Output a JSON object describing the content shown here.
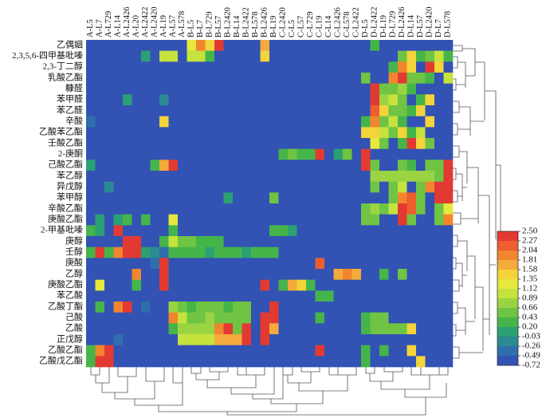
{
  "chart_data": {
    "type": "heatmap",
    "columns": [
      "A-L5",
      "A-L7",
      "A-L729",
      "A-L14",
      "A-L2426",
      "A-L20",
      "A-L2422",
      "A-L2420",
      "A-L19",
      "A-L57",
      "A-L578",
      "B-L5",
      "B-L7",
      "B-L729",
      "B-L57",
      "B-L2420",
      "B-L14",
      "B-L2422",
      "B-L578",
      "B-L2426",
      "B-L19",
      "C-L2420",
      "C-L5",
      "C-L57",
      "C-L729",
      "C-L19",
      "C-L14",
      "C-L2426",
      "C-L578",
      "C-L2422",
      "D-L5",
      "D-L2422",
      "D-L19",
      "D-L729",
      "D-L2426",
      "D-L14",
      "D-L57",
      "D-L2420",
      "D-L7",
      "D-L578"
    ],
    "rows": [
      "乙偶姻",
      "2,3,5,6-四甲基吡嗪",
      "2,3-丁二醇",
      "乳酸乙酯",
      "糠醛",
      "苯甲醛",
      "苯乙醛",
      "辛酸",
      "乙酸苯乙酯",
      "壬酸乙酯",
      "2-庚酮",
      "己酸乙酯",
      "苯乙醇",
      "异戊醇",
      "苯甲醇",
      "辛酸乙酯",
      "庚酸乙酯",
      "2-甲基吡嗪",
      "庚醇",
      "壬醇",
      "庚酸",
      "乙醇",
      "庚酸乙酯",
      "苯乙酸",
      "乙酸丁酯",
      "己酸",
      "乙酸",
      "正戊醇",
      "乙酸乙酯",
      "乙酸戊乙酯"
    ],
    "values": [
      [
        -0.72,
        -0.72,
        -0.72,
        -0.72,
        -0.72,
        -0.72,
        -0.72,
        -0.72,
        -0.72,
        -0.72,
        -0.72,
        1.2,
        1.9,
        1.5,
        2.4,
        -0.72,
        -0.72,
        -0.72,
        -0.72,
        1.8,
        -0.72,
        -0.72,
        -0.72,
        -0.72,
        -0.72,
        -0.72,
        -0.72,
        -0.72,
        -0.72,
        -0.72,
        -0.72,
        0.3,
        -0.72,
        -0.72,
        -0.72,
        -0.72,
        -0.72,
        -0.72,
        -0.72,
        -0.72
      ],
      [
        -0.72,
        -0.72,
        -0.72,
        -0.72,
        -0.72,
        -0.72,
        0.2,
        -0.72,
        0.9,
        0.9,
        -0.72,
        0.9,
        0.9,
        0.4,
        -0.72,
        -0.72,
        -0.72,
        -0.72,
        -0.72,
        1.4,
        -0.72,
        -0.72,
        -0.72,
        -0.72,
        -0.72,
        -0.72,
        -0.72,
        -0.72,
        -0.72,
        -0.72,
        -0.72,
        -0.72,
        -0.72,
        -0.72,
        0.5,
        1.5,
        0.4,
        0.6,
        1.0,
        0.4
      ],
      [
        -0.72,
        -0.72,
        -0.72,
        -0.72,
        -0.72,
        -0.72,
        -0.72,
        -0.72,
        -0.72,
        -0.72,
        -0.72,
        -0.72,
        -0.72,
        -0.72,
        -0.72,
        -0.72,
        -0.72,
        -0.72,
        -0.72,
        -0.72,
        -0.72,
        -0.72,
        -0.72,
        -0.72,
        -0.72,
        -0.72,
        -0.72,
        -0.72,
        -0.72,
        -0.72,
        -0.72,
        -0.72,
        -0.72,
        0.4,
        1.9,
        1.4,
        -0.72,
        2.4,
        1.5,
        -0.72
      ],
      [
        -0.72,
        -0.72,
        -0.72,
        -0.72,
        -0.72,
        -0.72,
        -0.72,
        -0.72,
        -0.72,
        -0.72,
        -0.72,
        -0.72,
        -0.72,
        -0.72,
        -0.72,
        -0.72,
        -0.72,
        -0.72,
        -0.72,
        -0.72,
        -0.72,
        -0.72,
        -0.72,
        -0.72,
        -0.72,
        -0.72,
        -0.72,
        -0.72,
        -0.72,
        -0.72,
        0.5,
        -0.72,
        -0.72,
        2.0,
        2.3,
        0.6,
        0.5,
        0.3,
        -0.72,
        0.9
      ],
      [
        -0.72,
        -0.72,
        -0.72,
        -0.72,
        -0.72,
        -0.72,
        -0.72,
        -0.72,
        -0.72,
        -0.72,
        -0.72,
        -0.72,
        -0.72,
        -0.72,
        -0.72,
        -0.72,
        -0.72,
        -0.72,
        -0.72,
        -0.72,
        -0.72,
        -0.72,
        -0.72,
        -0.72,
        -0.72,
        -0.72,
        -0.72,
        -0.72,
        -0.72,
        -0.72,
        -0.72,
        2.4,
        0.6,
        0.5,
        0.7,
        0.4,
        -0.72,
        -0.72,
        -0.72,
        -0.72
      ],
      [
        -0.72,
        -0.72,
        -0.72,
        -0.72,
        0.0,
        -0.72,
        -0.72,
        -0.72,
        -0.1,
        -0.72,
        -0.72,
        -0.72,
        -0.72,
        -0.72,
        -0.72,
        -0.72,
        -0.72,
        -0.72,
        -0.72,
        -0.72,
        -0.72,
        -0.72,
        -0.72,
        -0.72,
        -0.72,
        -0.72,
        -0.72,
        -0.72,
        -0.72,
        -0.72,
        -0.72,
        2.4,
        0.7,
        0.9,
        0.5,
        -0.72,
        0.4,
        1.4,
        -0.72,
        -0.72
      ],
      [
        -0.72,
        -0.72,
        -0.72,
        -0.72,
        -0.72,
        -0.72,
        -0.72,
        -0.72,
        -0.72,
        -0.72,
        -0.72,
        -0.72,
        -0.72,
        -0.72,
        -0.72,
        -0.72,
        -0.72,
        -0.72,
        -0.72,
        -0.72,
        -0.72,
        -0.72,
        -0.72,
        -0.72,
        -0.72,
        -0.72,
        -0.72,
        -0.72,
        -0.72,
        -0.72,
        -0.72,
        2.2,
        1.5,
        0.5,
        0.6,
        0.4,
        1.4,
        -0.72,
        -0.72,
        -0.72
      ],
      [
        -0.3,
        -0.72,
        -0.72,
        -0.72,
        -0.72,
        -0.72,
        -0.72,
        -0.72,
        1.5,
        -0.72,
        -0.72,
        -0.72,
        -0.72,
        -0.72,
        -0.72,
        -0.72,
        -0.72,
        -0.72,
        -0.72,
        -0.72,
        -0.72,
        -0.72,
        -0.72,
        -0.72,
        -0.72,
        -0.72,
        -0.72,
        -0.72,
        -0.72,
        -0.72,
        0.4,
        1.9,
        0.5,
        0.9,
        0.3,
        -0.72,
        -0.72,
        1.4,
        -0.72,
        -0.72
      ],
      [
        -0.72,
        -0.72,
        -0.72,
        -0.72,
        -0.72,
        -0.72,
        -0.72,
        -0.72,
        -0.72,
        -0.72,
        -0.72,
        -0.72,
        -0.72,
        -0.72,
        -0.72,
        -0.72,
        -0.72,
        -0.72,
        -0.72,
        -0.72,
        -0.72,
        -0.72,
        -0.72,
        -0.72,
        -0.72,
        -0.72,
        -0.72,
        -0.72,
        -0.72,
        -0.72,
        1.4,
        1.5,
        0.9,
        0.5,
        1.4,
        0.4,
        0.9,
        -0.72,
        -0.72,
        -0.72
      ],
      [
        -0.72,
        -0.72,
        -0.72,
        -0.72,
        -0.72,
        -0.72,
        -0.72,
        -0.72,
        -0.72,
        -0.72,
        -0.72,
        -0.72,
        -0.72,
        -0.72,
        -0.72,
        -0.72,
        -0.72,
        -0.72,
        -0.72,
        -0.72,
        -0.72,
        -0.72,
        -0.72,
        -0.72,
        -0.72,
        -0.72,
        -0.72,
        -0.72,
        -0.72,
        -0.72,
        -0.72,
        1.3,
        0.5,
        -0.72,
        0.4,
        2.4,
        1.5,
        0.5,
        -0.72,
        -0.72
      ],
      [
        -0.72,
        -0.72,
        -0.72,
        -0.72,
        -0.72,
        -0.72,
        -0.72,
        -0.72,
        -0.72,
        -0.72,
        -0.72,
        -0.72,
        -0.72,
        -0.72,
        -0.72,
        -0.72,
        -0.72,
        -0.72,
        -0.72,
        -0.72,
        -0.72,
        0.3,
        0.5,
        0.4,
        0.3,
        2.4,
        -0.72,
        0.2,
        0.5,
        -0.72,
        2.5,
        -0.72,
        -0.72,
        -0.72,
        -0.72,
        -0.72,
        -0.72,
        -0.72,
        -0.72,
        -0.72
      ],
      [
        0.2,
        -0.72,
        -0.72,
        -0.72,
        -0.72,
        -0.72,
        -0.72,
        0.3,
        1.8,
        2.3,
        -0.72,
        -0.72,
        -0.72,
        -0.72,
        -0.72,
        -0.72,
        -0.72,
        -0.72,
        -0.72,
        -0.72,
        -0.72,
        -0.72,
        -0.72,
        -0.72,
        -0.72,
        -0.72,
        -0.72,
        -0.72,
        -0.72,
        -0.72,
        2.3,
        0.5,
        -0.72,
        -0.72,
        0.5,
        0.4,
        -0.72,
        0.5,
        0.5,
        2.5
      ],
      [
        -0.72,
        -0.72,
        -0.72,
        -0.72,
        -0.72,
        -0.72,
        -0.72,
        -0.72,
        -0.72,
        -0.72,
        -0.72,
        -0.72,
        -0.72,
        -0.72,
        -0.72,
        -0.72,
        -0.72,
        -0.72,
        -0.72,
        -0.72,
        -0.72,
        -0.72,
        -0.72,
        -0.72,
        -0.72,
        -0.72,
        -0.72,
        -0.72,
        -0.72,
        -0.72,
        -0.72,
        0.8,
        0.7,
        0.8,
        0.8,
        0.7,
        0.8,
        0.7,
        0.6,
        2.5
      ],
      [
        -0.72,
        -0.72,
        -0.1,
        -0.72,
        -0.72,
        -0.72,
        -0.72,
        -0.72,
        -0.72,
        -0.72,
        -0.72,
        -0.72,
        -0.72,
        -0.72,
        -0.72,
        -0.72,
        -0.72,
        -0.72,
        -0.72,
        -0.72,
        -0.72,
        -0.72,
        -0.72,
        -0.72,
        -0.72,
        -0.72,
        -0.72,
        -0.72,
        -0.72,
        -0.72,
        -0.72,
        0.5,
        -0.72,
        0.5,
        0.9,
        -0.72,
        0.5,
        1.9,
        2.5,
        2.4
      ],
      [
        -0.72,
        -0.72,
        -0.72,
        -0.72,
        -0.72,
        -0.72,
        -0.72,
        -0.72,
        -0.72,
        -0.72,
        -0.72,
        -0.72,
        -0.72,
        -0.72,
        -0.72,
        0.0,
        -0.72,
        -0.72,
        -0.72,
        -0.72,
        0.5,
        -0.72,
        -0.72,
        -0.72,
        -0.72,
        -0.72,
        -0.72,
        -0.72,
        -0.72,
        -0.72,
        -0.72,
        -0.72,
        -0.72,
        0.5,
        1.9,
        2.2,
        0.5,
        -0.72,
        2.5,
        2.4
      ],
      [
        -0.72,
        -0.72,
        -0.72,
        -0.72,
        -0.72,
        -0.72,
        -0.72,
        -0.72,
        -0.72,
        -0.72,
        -0.72,
        -0.72,
        -0.72,
        -0.72,
        -0.72,
        -0.72,
        -0.72,
        -0.72,
        -0.72,
        -0.72,
        -0.72,
        -0.72,
        -0.72,
        -0.72,
        -0.72,
        -0.72,
        -0.72,
        -0.72,
        -0.72,
        -0.72,
        0.5,
        0.7,
        0.5,
        0.9,
        2.3,
        2.2,
        0.5,
        -0.72,
        0.5,
        1.3
      ],
      [
        -0.72,
        0.2,
        -0.72,
        0.0,
        0.3,
        -0.72,
        0.3,
        -0.72,
        -0.72,
        1.3,
        -0.72,
        -0.72,
        -0.72,
        -0.72,
        -0.72,
        -0.72,
        -0.72,
        -0.72,
        -0.72,
        -0.72,
        -0.72,
        -0.72,
        -0.72,
        -0.72,
        -0.72,
        -0.72,
        -0.72,
        -0.72,
        -0.72,
        -0.72,
        0.6,
        0.6,
        -0.72,
        -0.72,
        2.3,
        0.5,
        -0.72,
        -0.72,
        0.5,
        2.0
      ],
      [
        0.3,
        0.2,
        -0.72,
        2.3,
        -0.72,
        -0.72,
        -0.72,
        -0.72,
        -0.72,
        0.4,
        -0.72,
        -0.72,
        -0.72,
        -0.72,
        -0.72,
        -0.72,
        -0.72,
        -0.72,
        -0.72,
        -0.72,
        0.3,
        0.3,
        0.2,
        -0.72,
        -0.72,
        -0.72,
        -0.72,
        -0.72,
        -0.72,
        -0.72,
        -0.72,
        -0.72,
        -0.72,
        -0.72,
        -0.72,
        -0.72,
        -0.72,
        -0.72,
        -0.72,
        -0.72
      ],
      [
        -0.72,
        -0.72,
        -0.72,
        -0.72,
        2.4,
        2.3,
        -0.72,
        -0.72,
        0.3,
        0.9,
        0.5,
        0.5,
        0.4,
        0.4,
        0.3,
        -0.72,
        -0.72,
        -0.72,
        -0.72,
        -0.72,
        -0.72,
        -0.72,
        -0.72,
        -0.72,
        -0.72,
        -0.72,
        -0.72,
        -0.72,
        -0.72,
        -0.72,
        -0.72,
        -0.72,
        -0.72,
        -0.72,
        -0.72,
        -0.72,
        -0.72,
        -0.72,
        -0.72,
        -0.72
      ],
      [
        0.3,
        2.4,
        0.3,
        2.0,
        2.4,
        2.3,
        0.2,
        -0.2,
        -0.3,
        0.3,
        0.3,
        0.3,
        0.3,
        0.2,
        0.3,
        0.3,
        0.3,
        0.2,
        0.3,
        0.3,
        0.3,
        -0.72,
        -0.72,
        -0.72,
        -0.72,
        -0.72,
        -0.72,
        -0.72,
        -0.72,
        -0.72,
        -0.72,
        -0.72,
        -0.72,
        -0.72,
        -0.72,
        -0.72,
        -0.72,
        -0.72,
        -0.72,
        -0.72
      ],
      [
        -0.72,
        -0.72,
        -0.72,
        -0.72,
        -0.72,
        -0.72,
        -0.72,
        -0.3,
        2.5,
        -0.72,
        -0.72,
        -0.72,
        -0.72,
        -0.72,
        -0.72,
        -0.72,
        -0.72,
        -0.72,
        -0.72,
        -0.72,
        -0.72,
        -0.72,
        -0.72,
        -0.72,
        -0.72,
        2.2,
        -0.72,
        -0.72,
        -0.72,
        -0.72,
        -0.72,
        -0.72,
        -0.72,
        -0.72,
        -0.72,
        -0.72,
        -0.72,
        -0.72,
        -0.72,
        -0.72
      ],
      [
        -0.72,
        -0.72,
        -0.72,
        -0.72,
        -0.72,
        1.9,
        -0.72,
        -0.72,
        2.4,
        -0.72,
        -0.72,
        -0.72,
        -0.72,
        -0.72,
        -0.72,
        -0.72,
        -0.72,
        -0.72,
        -0.72,
        -0.72,
        -0.72,
        -0.72,
        -0.72,
        -0.72,
        -0.72,
        -0.72,
        -0.72,
        1.8,
        1.9,
        1.7,
        -0.72,
        -0.72,
        0.4,
        -0.72,
        0.5,
        -0.72,
        -0.72,
        -0.72,
        -0.72,
        -0.72
      ],
      [
        -0.72,
        1.3,
        -0.72,
        -0.72,
        -0.72,
        0.4,
        -0.72,
        -0.72,
        2.4,
        -0.72,
        -0.72,
        -0.72,
        -0.72,
        -0.72,
        -0.72,
        -0.72,
        -0.72,
        -0.72,
        -0.72,
        2.3,
        -0.72,
        0.4,
        1.7,
        1.5,
        0.4,
        -0.72,
        -0.72,
        -0.72,
        -0.72,
        -0.72,
        -0.72,
        -0.72,
        -0.72,
        -0.72,
        -0.72,
        -0.72,
        -0.72,
        -0.72,
        -0.72,
        -0.72
      ],
      [
        -0.72,
        -0.72,
        -0.72,
        -0.72,
        -0.72,
        -0.72,
        -0.72,
        -0.72,
        -0.72,
        -0.72,
        -0.72,
        -0.72,
        -0.72,
        -0.72,
        -0.72,
        -0.72,
        -0.72,
        -0.72,
        -0.72,
        -0.72,
        -0.72,
        -0.72,
        -0.72,
        -0.72,
        -0.72,
        0.3,
        0.3,
        -0.72,
        -0.72,
        -0.72,
        -0.72,
        -0.72,
        -0.72,
        -0.72,
        -0.72,
        -0.72,
        -0.72,
        -0.72,
        -0.72,
        -0.72
      ],
      [
        -0.72,
        0.3,
        -0.72,
        1.9,
        2.4,
        -0.72,
        -0.3,
        -0.72,
        -0.72,
        0.7,
        0.5,
        0.4,
        0.5,
        0.6,
        0.5,
        0.4,
        0.5,
        0.5,
        -0.72,
        -0.72,
        2.5,
        -0.72,
        -0.72,
        -0.72,
        -0.72,
        -0.72,
        -0.72,
        -0.72,
        -0.72,
        -0.72,
        -0.72,
        -0.72,
        -0.72,
        -0.72,
        -0.72,
        -0.72,
        -0.72,
        -0.72,
        -0.72,
        -0.72
      ],
      [
        -0.72,
        -0.72,
        -0.72,
        -0.72,
        -0.72,
        -0.72,
        -0.72,
        -0.72,
        -0.72,
        1.9,
        1.0,
        0.6,
        0.6,
        0.7,
        0.6,
        0.6,
        0.5,
        0.6,
        -0.72,
        2.4,
        2.3,
        -0.72,
        -0.72,
        -0.72,
        -0.72,
        0.3,
        -0.72,
        -0.72,
        -0.72,
        -0.72,
        0.3,
        0.5,
        0.5,
        -0.72,
        -0.72,
        -0.72,
        -0.72,
        -0.72,
        -0.72,
        -0.72
      ],
      [
        -0.72,
        -0.72,
        -0.72,
        -0.72,
        -0.72,
        -0.72,
        -0.72,
        -0.72,
        -0.72,
        0.4,
        0.7,
        0.7,
        0.7,
        0.7,
        1.9,
        2.4,
        0.6,
        2.3,
        -0.72,
        2.5,
        1.8,
        -0.72,
        -0.72,
        -0.72,
        -0.72,
        -0.72,
        -0.72,
        -0.72,
        -0.72,
        -0.72,
        0.4,
        0.6,
        0.6,
        0.6,
        0.6,
        1.4,
        -0.72,
        -0.72,
        -0.72,
        -0.72
      ],
      [
        -0.72,
        -0.72,
        -0.72,
        -0.3,
        -0.72,
        -0.72,
        -0.72,
        -0.72,
        -0.72,
        -0.72,
        0.9,
        0.9,
        0.9,
        0.9,
        1.8,
        1.8,
        1.8,
        2.3,
        -0.72,
        2.4,
        -0.72,
        -0.72,
        -0.72,
        -0.72,
        -0.72,
        -0.72,
        -0.72,
        -0.72,
        -0.72,
        -0.72,
        -0.72,
        -0.72,
        -0.72,
        -0.72,
        -0.72,
        -0.72,
        -0.72,
        -0.72,
        -0.72,
        -0.72
      ],
      [
        0.4,
        2.0,
        2.5,
        -0.72,
        -0.72,
        -0.72,
        -0.72,
        -0.72,
        -0.72,
        -0.72,
        -0.72,
        -0.72,
        -0.72,
        -0.72,
        -0.72,
        -0.72,
        -0.72,
        -0.72,
        -0.72,
        -0.72,
        -0.72,
        -0.72,
        -0.72,
        -0.72,
        -0.72,
        2.3,
        -0.72,
        -0.72,
        -0.72,
        -0.72,
        0.3,
        -0.72,
        0.3,
        -0.72,
        -0.72,
        1.4,
        -0.72,
        -0.72,
        -0.72,
        -0.72
      ],
      [
        0.3,
        2.4,
        2.5,
        -0.72,
        -0.72,
        -0.72,
        -0.72,
        -0.72,
        -0.72,
        -0.72,
        -0.72,
        -0.72,
        -0.72,
        -0.72,
        -0.72,
        -0.72,
        -0.72,
        -0.72,
        -0.72,
        -0.72,
        -0.72,
        -0.72,
        -0.72,
        -0.72,
        -0.72,
        -0.72,
        -0.72,
        -0.72,
        -0.72,
        -0.72,
        0.3,
        -0.72,
        -0.72,
        -0.72,
        -0.72,
        -0.72,
        1.5,
        -0.72,
        -0.72,
        -0.72
      ]
    ],
    "clim": [
      -0.72,
      2.5
    ],
    "colorbar_ticks": [
      {
        "value": 2.5,
        "label": "2.50"
      },
      2.27,
      2.04,
      1.81,
      1.58,
      1.35,
      1.12,
      0.89,
      0.66,
      0.43,
      {
        "value": 0.2,
        "label": "0.20"
      },
      -0.03,
      -0.26,
      -0.49,
      -0.72
    ],
    "colors": [
      "#e23a33",
      "#ee5e2e",
      "#f2852f",
      "#f5aa3c",
      "#f3d43a",
      "#e6e83c",
      "#c6e23c",
      "#9ad443",
      "#6fc443",
      "#45b54a",
      "#2aa073",
      "#2b8a92",
      "#2f6eac",
      "#3252b4"
    ]
  }
}
